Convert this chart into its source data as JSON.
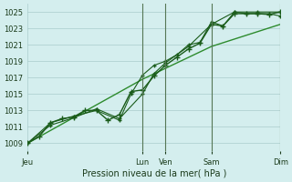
{
  "background_color": "#d4eeee",
  "grid_color": "#aacccc",
  "line_color_dark": "#1a5c1a",
  "line_color_light": "#2d8b2d",
  "xlabel": "Pression niveau de la mer( hPa )",
  "ylim": [
    1008,
    1026
  ],
  "yticks": [
    1009,
    1011,
    1013,
    1015,
    1017,
    1019,
    1021,
    1023,
    1025
  ],
  "day_labels": [
    "Jeu",
    "Lun",
    "Ven",
    "Sam",
    "Dim"
  ],
  "day_positions": [
    0,
    5,
    6,
    8,
    11
  ],
  "series1": [
    [
      0,
      1009
    ],
    [
      0.5,
      1009.8
    ],
    [
      1,
      1011.5
    ],
    [
      1.5,
      1012.0
    ],
    [
      2,
      1012.2
    ],
    [
      2.5,
      1013.0
    ],
    [
      3,
      1013.0
    ],
    [
      3.5,
      1011.8
    ],
    [
      4,
      1012.5
    ],
    [
      4.5,
      1015.3
    ],
    [
      5,
      1015.5
    ],
    [
      5.5,
      1017.2
    ],
    [
      6,
      1018.5
    ],
    [
      6.5,
      1019.5
    ],
    [
      7,
      1020.5
    ],
    [
      7.5,
      1021.2
    ],
    [
      8,
      1023.5
    ],
    [
      8.5,
      1023.3
    ],
    [
      9,
      1024.8
    ],
    [
      9.5,
      1024.8
    ],
    [
      10,
      1024.8
    ],
    [
      10.5,
      1024.7
    ],
    [
      11,
      1025.0
    ]
  ],
  "series2": [
    [
      0,
      1009
    ],
    [
      1,
      1011.5
    ],
    [
      2,
      1012.3
    ],
    [
      3,
      1013.0
    ],
    [
      4,
      1011.8
    ],
    [
      4.5,
      1015.0
    ],
    [
      5,
      1017.3
    ],
    [
      5.5,
      1018.5
    ],
    [
      6,
      1019.0
    ],
    [
      6.5,
      1019.8
    ],
    [
      7,
      1021.0
    ],
    [
      7.5,
      1021.3
    ],
    [
      8,
      1023.8
    ],
    [
      8.5,
      1023.3
    ],
    [
      9,
      1025.0
    ],
    [
      9.5,
      1024.8
    ],
    [
      10,
      1024.8
    ],
    [
      10.5,
      1024.8
    ],
    [
      11,
      1024.5
    ]
  ],
  "series3": [
    [
      0,
      1009
    ],
    [
      1,
      1011.2
    ],
    [
      2,
      1012.1
    ],
    [
      3,
      1013.2
    ],
    [
      4,
      1012.0
    ],
    [
      5,
      1015.0
    ],
    [
      5.5,
      1017.5
    ],
    [
      6,
      1018.8
    ],
    [
      7,
      1020.8
    ],
    [
      8,
      1023.5
    ],
    [
      9,
      1025.0
    ],
    [
      10,
      1025.0
    ],
    [
      11,
      1025.0
    ]
  ],
  "series4": [
    [
      0,
      1009
    ],
    [
      5,
      1016.8
    ],
    [
      8,
      1020.8
    ],
    [
      11,
      1023.5
    ]
  ]
}
